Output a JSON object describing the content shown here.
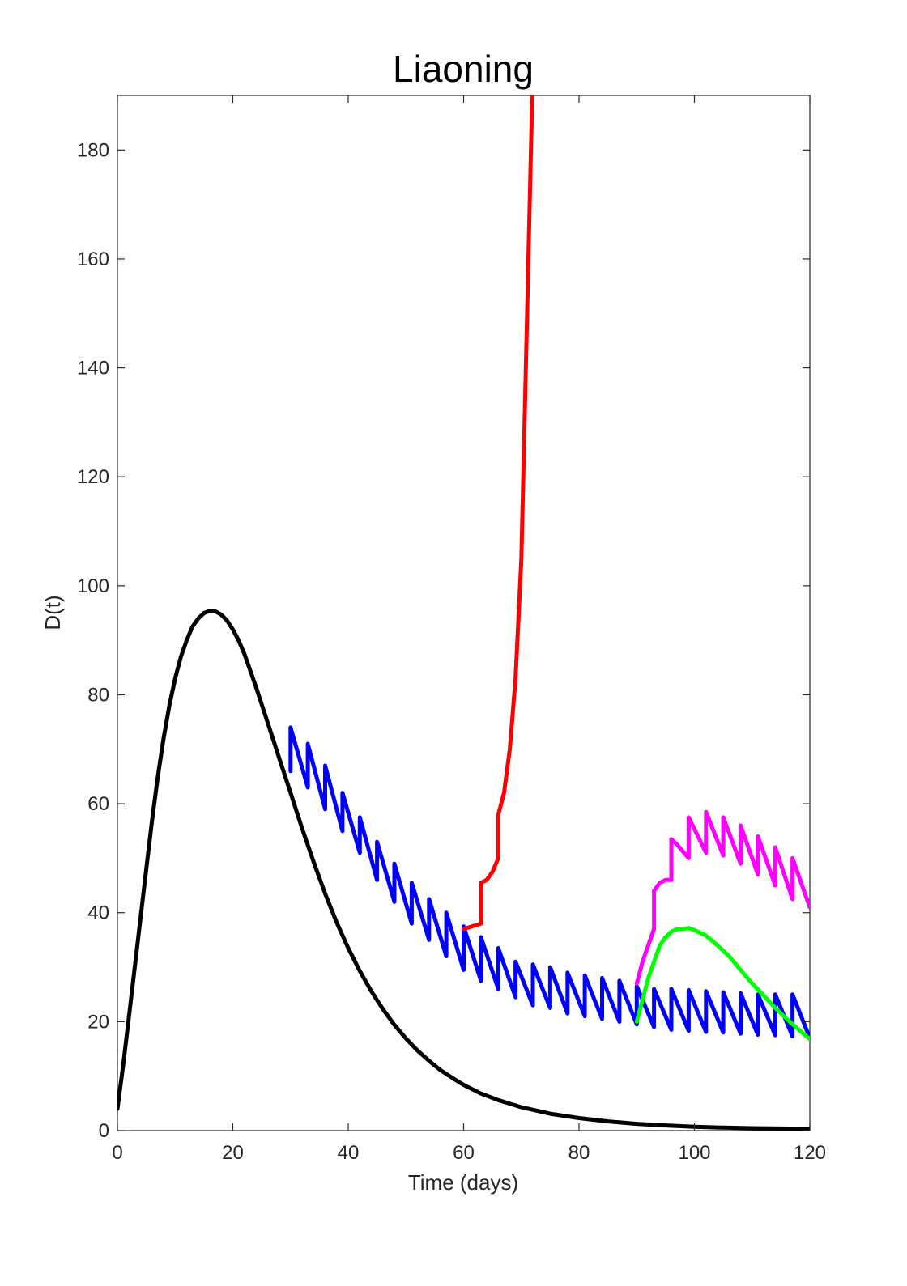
{
  "chart_data": {
    "type": "line",
    "title": "Liaoning",
    "xlabel": "Time (days)",
    "ylabel": "D(t)",
    "xlim": [
      0,
      120
    ],
    "ylim": [
      0,
      190
    ],
    "xticks": [
      0,
      20,
      40,
      60,
      80,
      100,
      120
    ],
    "yticks": [
      0,
      20,
      40,
      60,
      80,
      100,
      120,
      140,
      160,
      180
    ],
    "grid": false,
    "legend": "none",
    "series": [
      {
        "color": "#000000",
        "points": [
          [
            0,
            4
          ],
          [
            1,
            12
          ],
          [
            2,
            21
          ],
          [
            3,
            30
          ],
          [
            4,
            39
          ],
          [
            5,
            48
          ],
          [
            6,
            57
          ],
          [
            7,
            65
          ],
          [
            8,
            72
          ],
          [
            9,
            78
          ],
          [
            10,
            83
          ],
          [
            11,
            87
          ],
          [
            12,
            90
          ],
          [
            13,
            92.5
          ],
          [
            14,
            94
          ],
          [
            15,
            95
          ],
          [
            16,
            95.4
          ],
          [
            17,
            95.3
          ],
          [
            18,
            94.7
          ],
          [
            19,
            93.6
          ],
          [
            20,
            92
          ],
          [
            21,
            90
          ],
          [
            22,
            87.5
          ],
          [
            24,
            81.5
          ],
          [
            26,
            75
          ],
          [
            28,
            68.5
          ],
          [
            30,
            62
          ],
          [
            32,
            55.5
          ],
          [
            34,
            49.3
          ],
          [
            36,
            43.5
          ],
          [
            38,
            38.2
          ],
          [
            40,
            33.5
          ],
          [
            42,
            29.3
          ],
          [
            44,
            25.6
          ],
          [
            46,
            22.3
          ],
          [
            48,
            19.4
          ],
          [
            50,
            16.9
          ],
          [
            52,
            14.7
          ],
          [
            54,
            12.8
          ],
          [
            56,
            11.1
          ],
          [
            58,
            9.7
          ],
          [
            60,
            8.4
          ],
          [
            63,
            6.8
          ],
          [
            66,
            5.6
          ],
          [
            70,
            4.3
          ],
          [
            75,
            3.1
          ],
          [
            80,
            2.3
          ],
          [
            85,
            1.7
          ],
          [
            90,
            1.25
          ],
          [
            95,
            0.95
          ],
          [
            100,
            0.7
          ],
          [
            105,
            0.55
          ],
          [
            110,
            0.45
          ],
          [
            115,
            0.38
          ],
          [
            120,
            0.32
          ]
        ]
      },
      {
        "color": "#0000ff",
        "points": [
          [
            30,
            66
          ],
          [
            30,
            74
          ],
          [
            33,
            63
          ],
          [
            33,
            71
          ],
          [
            36,
            59
          ],
          [
            36,
            67
          ],
          [
            39,
            55
          ],
          [
            39,
            62
          ],
          [
            42,
            51
          ],
          [
            42,
            57.5
          ],
          [
            45,
            46
          ],
          [
            45,
            53
          ],
          [
            48,
            42
          ],
          [
            48,
            49
          ],
          [
            51,
            38
          ],
          [
            51,
            45.5
          ],
          [
            54,
            35
          ],
          [
            54,
            42.5
          ],
          [
            57,
            32
          ],
          [
            57,
            40
          ],
          [
            60,
            29.5
          ],
          [
            60,
            37.5
          ],
          [
            63,
            27.5
          ],
          [
            63,
            35.5
          ],
          [
            66,
            26
          ],
          [
            66,
            33.5
          ],
          [
            69,
            24.5
          ],
          [
            69,
            31
          ],
          [
            72,
            23
          ],
          [
            72,
            30.5
          ],
          [
            75,
            22.5
          ],
          [
            75,
            30
          ],
          [
            78,
            21.5
          ],
          [
            78,
            29
          ],
          [
            81,
            21
          ],
          [
            81,
            28.5
          ],
          [
            84,
            20.5
          ],
          [
            84,
            28
          ],
          [
            87,
            20
          ],
          [
            87,
            27.5
          ],
          [
            90,
            19.5
          ],
          [
            90,
            26.5
          ],
          [
            93,
            19
          ],
          [
            93,
            26
          ],
          [
            96,
            18.5
          ],
          [
            96,
            26
          ],
          [
            99,
            18.3
          ],
          [
            99,
            25.8
          ],
          [
            102,
            18.1
          ],
          [
            102,
            25.6
          ],
          [
            105,
            18
          ],
          [
            105,
            25.4
          ],
          [
            108,
            17.8
          ],
          [
            108,
            25.2
          ],
          [
            111,
            17.6
          ],
          [
            111,
            25
          ],
          [
            114,
            17.5
          ],
          [
            114,
            25
          ],
          [
            117,
            17.3
          ],
          [
            117,
            25
          ],
          [
            120,
            17
          ]
        ]
      },
      {
        "color": "#ff0000",
        "points": [
          [
            60,
            37
          ],
          [
            63,
            38
          ],
          [
            63,
            45.5
          ],
          [
            64,
            46
          ],
          [
            65,
            47.5
          ],
          [
            66,
            50
          ],
          [
            66,
            58
          ],
          [
            67,
            62
          ],
          [
            68,
            70
          ],
          [
            69,
            83
          ],
          [
            69.5,
            94
          ],
          [
            70,
            105
          ],
          [
            71,
            150
          ],
          [
            72,
            195
          ]
        ]
      },
      {
        "color": "#ff00ff",
        "points": [
          [
            90,
            27
          ],
          [
            91,
            31
          ],
          [
            92,
            34
          ],
          [
            93,
            37
          ],
          [
            93,
            44
          ],
          [
            94,
            45.5
          ],
          [
            95,
            46
          ],
          [
            96,
            46
          ],
          [
            96,
            53.5
          ],
          [
            97,
            52.5
          ],
          [
            99,
            50
          ],
          [
            99,
            57.5
          ],
          [
            102,
            51
          ],
          [
            102,
            58.5
          ],
          [
            105,
            50.5
          ],
          [
            105,
            57.5
          ],
          [
            108,
            49
          ],
          [
            108,
            56
          ],
          [
            111,
            47
          ],
          [
            111,
            54
          ],
          [
            114,
            45
          ],
          [
            114,
            52
          ],
          [
            117,
            42.5
          ],
          [
            117,
            50
          ],
          [
            120,
            41
          ]
        ]
      },
      {
        "color": "#00ff00",
        "points": [
          [
            90,
            20
          ],
          [
            91,
            24
          ],
          [
            92,
            28
          ],
          [
            93,
            31
          ],
          [
            94,
            34
          ],
          [
            95,
            35.5
          ],
          [
            96,
            36.5
          ],
          [
            97,
            37
          ],
          [
            98,
            37
          ],
          [
            99,
            37.2
          ],
          [
            100,
            36.8
          ],
          [
            102,
            35.8
          ],
          [
            104,
            34
          ],
          [
            106,
            32
          ],
          [
            108,
            29.5
          ],
          [
            110,
            27
          ],
          [
            112,
            24.8
          ],
          [
            114,
            22.5
          ],
          [
            116,
            20.5
          ],
          [
            118,
            18.6
          ],
          [
            120,
            16.8
          ]
        ]
      }
    ]
  }
}
